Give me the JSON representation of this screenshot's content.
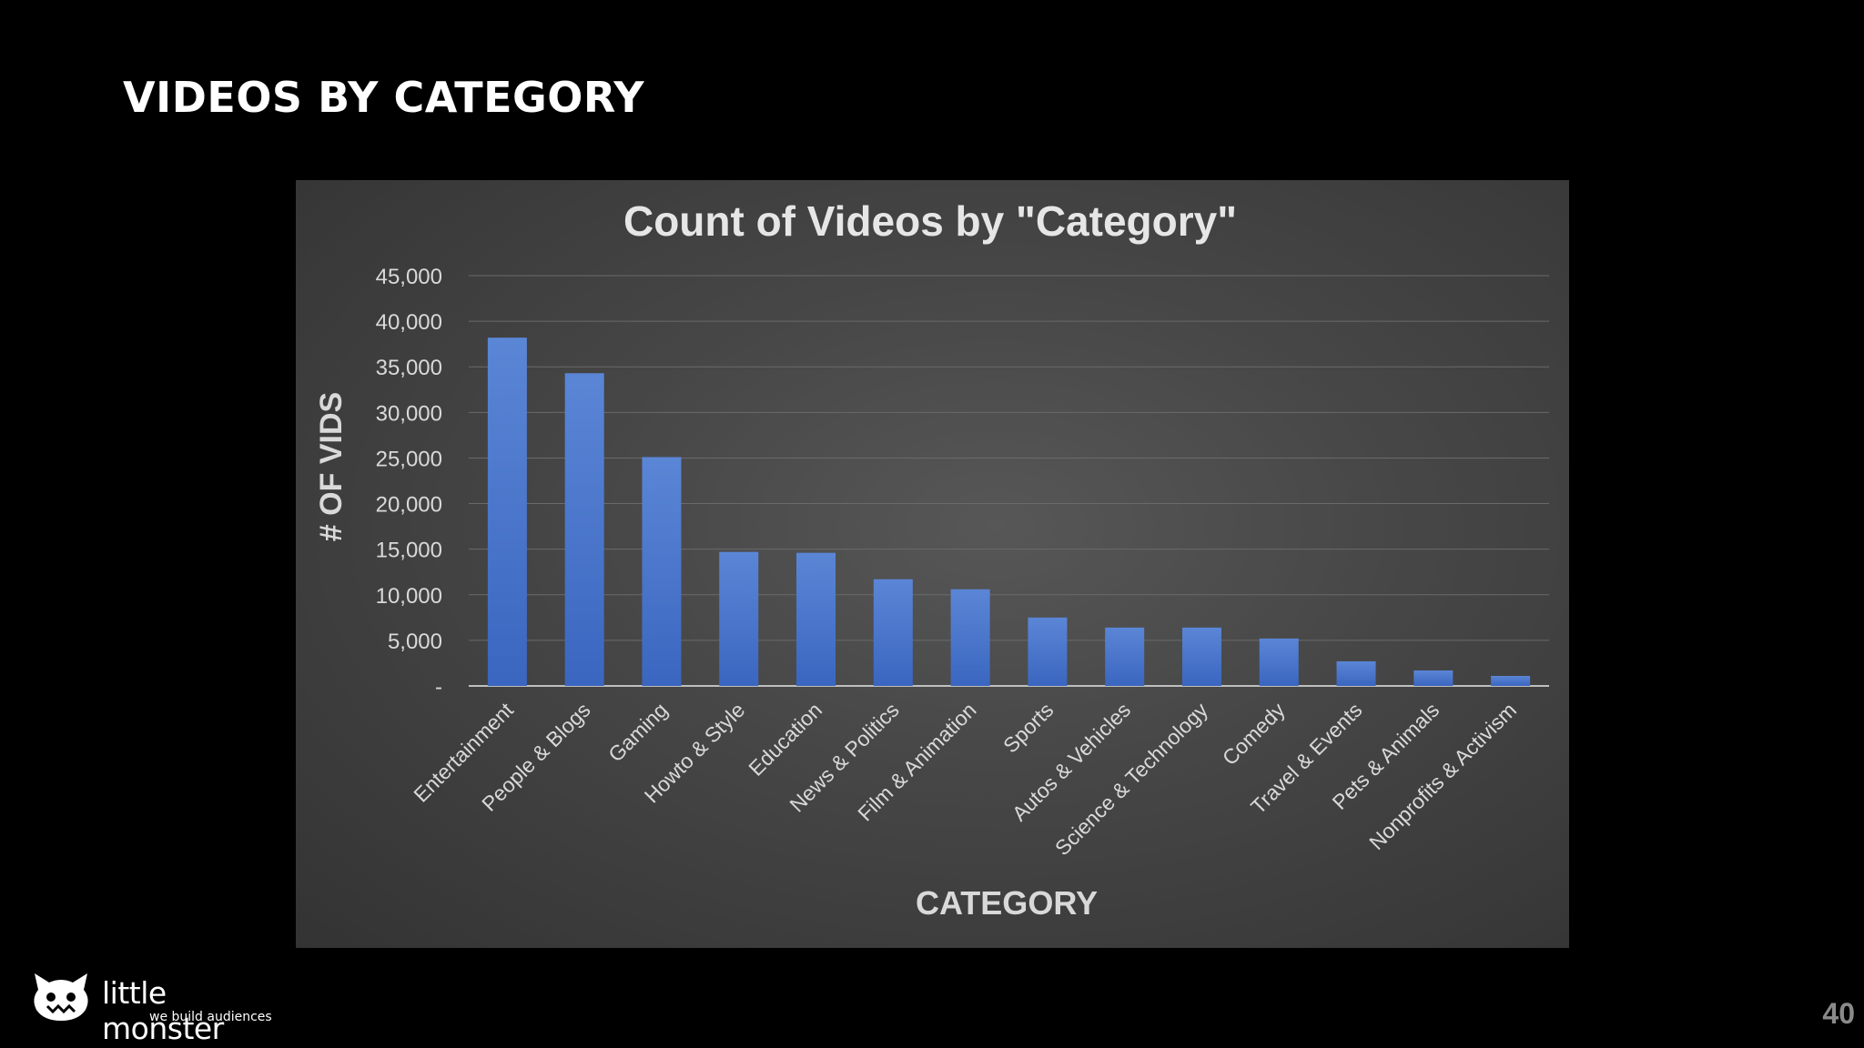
{
  "slide": {
    "title": "VIDEOS BY CATEGORY",
    "page_number": "40"
  },
  "logo": {
    "icon": "cat-monster-icon",
    "name": "little monster",
    "tagline": "we build audiences"
  },
  "colors": {
    "background": "#000000",
    "bar": "#4472c4",
    "chart_text": "#d9d9d9",
    "gridline": "#6a6a6a"
  },
  "chart_data": {
    "type": "bar",
    "title": "Count of Videos by \"Category\"",
    "xlabel": "CATEGORY",
    "ylabel": "# OF VIDS",
    "ylim": [
      0,
      45000
    ],
    "yticks": [
      0,
      5000,
      10000,
      15000,
      20000,
      25000,
      30000,
      35000,
      40000,
      45000
    ],
    "ytick_labels": [
      "-",
      "5,000",
      "10,000",
      "15,000",
      "20,000",
      "25,000",
      "30,000",
      "35,000",
      "40,000",
      "45,000"
    ],
    "grid": true,
    "categories": [
      "Entertainment",
      "People & Blogs",
      "Gaming",
      "Howto & Style",
      "Education",
      "News & Politics",
      "Film & Animation",
      "Sports",
      "Autos & Vehicles",
      "Science & Technology",
      "Comedy",
      "Travel & Events",
      "Pets & Animals",
      "Nonprofits & Activism"
    ],
    "values": [
      38200,
      34300,
      25100,
      14700,
      14600,
      11700,
      10600,
      7500,
      6400,
      6400,
      5200,
      2700,
      1700,
      1100
    ]
  }
}
